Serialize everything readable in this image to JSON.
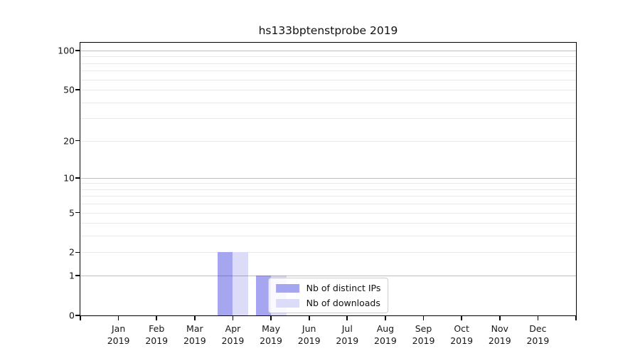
{
  "window": {
    "background": "#ffffff"
  },
  "chart_data": {
    "type": "bar",
    "title": "hs133bptenstprobe 2019",
    "x_categories": [
      "Jan",
      "Feb",
      "Mar",
      "Apr",
      "May",
      "Jun",
      "Jul",
      "Aug",
      "Sep",
      "Oct",
      "Nov",
      "Dec"
    ],
    "x_year": "2019",
    "series": [
      {
        "name": "Nb of distinct IPs",
        "color": "#a6a6f0",
        "values": [
          0,
          0,
          0,
          2,
          1,
          0,
          0,
          0,
          0,
          0,
          0,
          0
        ]
      },
      {
        "name": "Nb of downloads",
        "color": "#dcdcf9",
        "values": [
          0,
          0,
          0,
          2,
          1,
          0,
          0,
          0,
          0,
          0,
          0,
          0
        ]
      }
    ],
    "yscale": "symlog-log1p",
    "ylim": [
      0,
      100
    ],
    "ytick_values": [
      0,
      1,
      2,
      5,
      10,
      20,
      50,
      100
    ],
    "major_gridline_values": [
      1,
      10,
      100
    ],
    "minor_gridline_values": [
      2,
      3,
      4,
      5,
      6,
      7,
      8,
      9,
      20,
      30,
      40,
      50,
      60,
      70,
      80,
      90
    ],
    "grid": true,
    "legend_position": "lower center",
    "axis_color": "#000000",
    "major_grid_color": "rgba(40,40,40,0.30)",
    "minor_grid_color": "#eaeaea",
    "text_color": "#161616"
  }
}
